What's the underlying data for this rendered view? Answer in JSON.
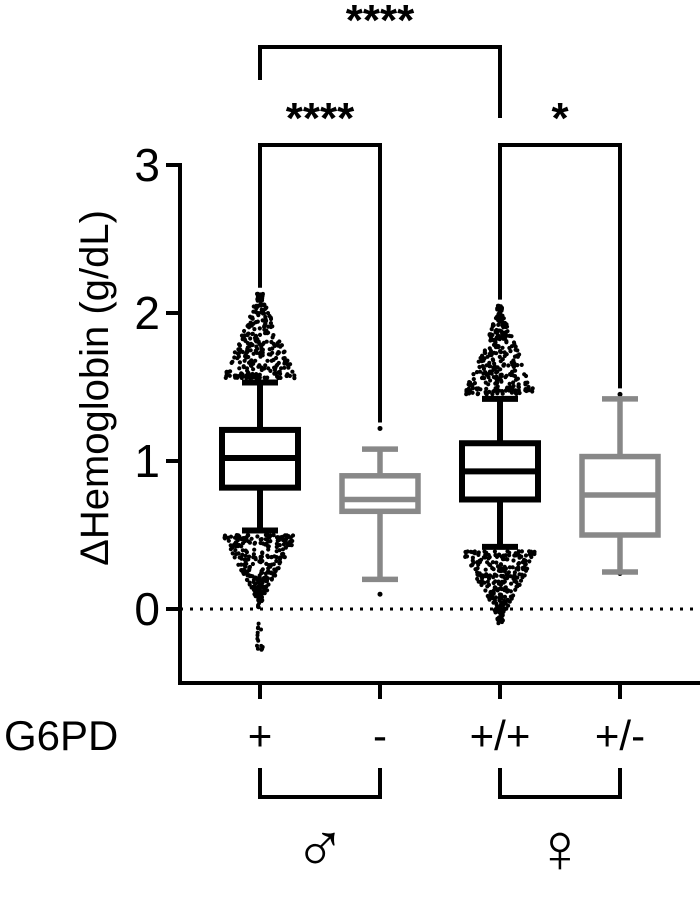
{
  "chart_data": {
    "type": "box",
    "ylabel": "ΔHemoglobin (g/dL)",
    "ylim": [
      -0.5,
      3
    ],
    "yticks": [
      0,
      1,
      2,
      3
    ],
    "ytick_labels": [
      "0",
      "1",
      "2",
      "3"
    ],
    "reference_line": 0,
    "factor_label": "G6PD",
    "groups": [
      {
        "label": "♂",
        "categories": [
          0,
          1
        ]
      },
      {
        "label": "♀",
        "categories": [
          2,
          3
        ]
      }
    ],
    "categories": [
      "+",
      "-",
      "+/+",
      "+/-"
    ],
    "series": [
      {
        "category": "+",
        "color": "#000000",
        "whisker_low": 0.53,
        "q1": 0.82,
        "median": 1.02,
        "q3": 1.21,
        "whisker_high": 1.53,
        "min": -0.28,
        "max": 2.13
      },
      {
        "category": "-",
        "color": "#888888",
        "whisker_low": 0.2,
        "q1": 0.66,
        "median": 0.74,
        "q3": 0.9,
        "whisker_high": 1.08,
        "min": 0.1,
        "max": 1.22
      },
      {
        "category": "+/+",
        "color": "#000000",
        "whisker_low": 0.42,
        "q1": 0.74,
        "median": 0.93,
        "q3": 1.12,
        "whisker_high": 1.42,
        "min": -0.1,
        "max": 2.05
      },
      {
        "category": "+/-",
        "color": "#888888",
        "whisker_low": 0.25,
        "q1": 0.5,
        "median": 0.77,
        "q3": 1.03,
        "whisker_high": 1.42,
        "min": 0.24,
        "max": 1.45
      }
    ],
    "significance": [
      {
        "from": 0,
        "to": 2,
        "label": "****",
        "level": "top"
      },
      {
        "from": 0,
        "to": 1,
        "label": "****",
        "level": "lower"
      },
      {
        "from": 2,
        "to": 3,
        "label": "*",
        "level": "lower"
      }
    ]
  }
}
